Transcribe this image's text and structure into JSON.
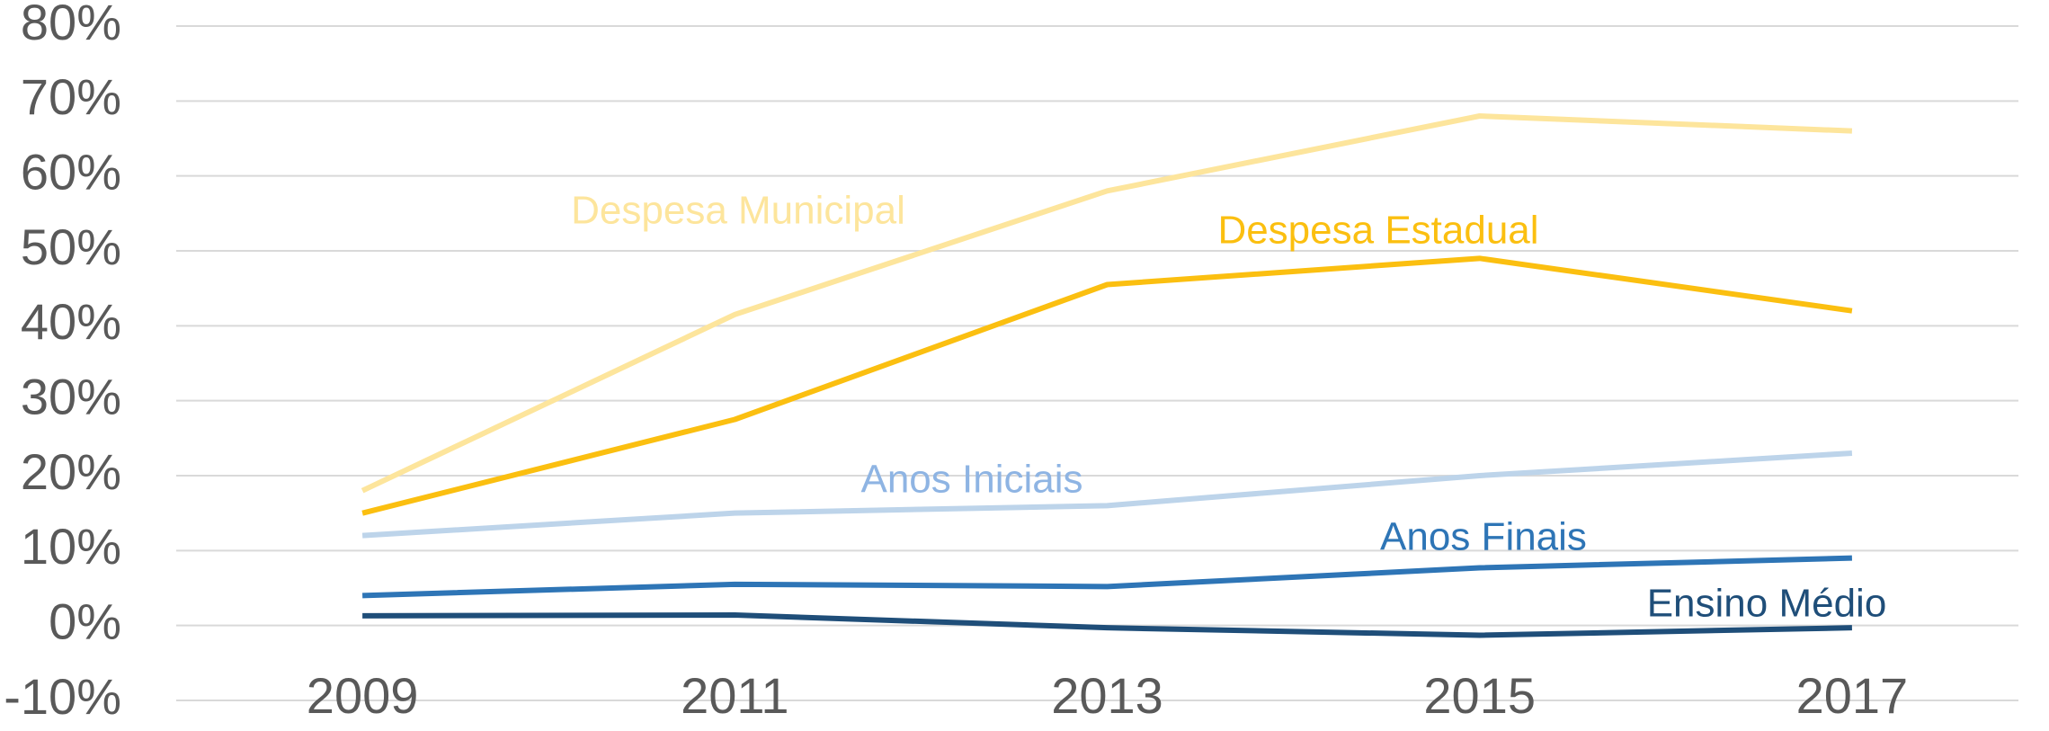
{
  "chart_data": {
    "type": "line",
    "categories": [
      "2009",
      "2011",
      "2013",
      "2015",
      "2017"
    ],
    "ylim": [
      -10,
      80
    ],
    "yticks": [
      {
        "value": -10,
        "label": "-10%"
      },
      {
        "value": 0,
        "label": "0%"
      },
      {
        "value": 10,
        "label": "10%"
      },
      {
        "value": 20,
        "label": "20%"
      },
      {
        "value": 30,
        "label": "30%"
      },
      {
        "value": 40,
        "label": "40%"
      },
      {
        "value": 50,
        "label": "50%"
      },
      {
        "value": 60,
        "label": "60%"
      },
      {
        "value": 70,
        "label": "70%"
      },
      {
        "value": 80,
        "label": "80%"
      }
    ],
    "grid": true,
    "series": [
      {
        "name": "Despesa Municipal",
        "color": "#fde59c",
        "values": [
          18,
          41.5,
          58,
          68,
          66
        ]
      },
      {
        "name": "Despesa Estadual",
        "color": "#fbbf10",
        "values": [
          15,
          27.5,
          45.5,
          49,
          42
        ]
      },
      {
        "name": "Anos Iniciais",
        "color": "#bdd4ea",
        "label_color": "#8eb4e3",
        "values": [
          12,
          15,
          16,
          20,
          23
        ]
      },
      {
        "name": "Anos Finais",
        "color": "#2e75b6",
        "values": [
          4,
          5.5,
          5.2,
          7.7,
          9
        ]
      },
      {
        "name": "Ensino Médio",
        "color": "#1f4e79",
        "values": [
          1.3,
          1.4,
          -0.3,
          -1.3,
          -0.3
        ]
      }
    ]
  }
}
